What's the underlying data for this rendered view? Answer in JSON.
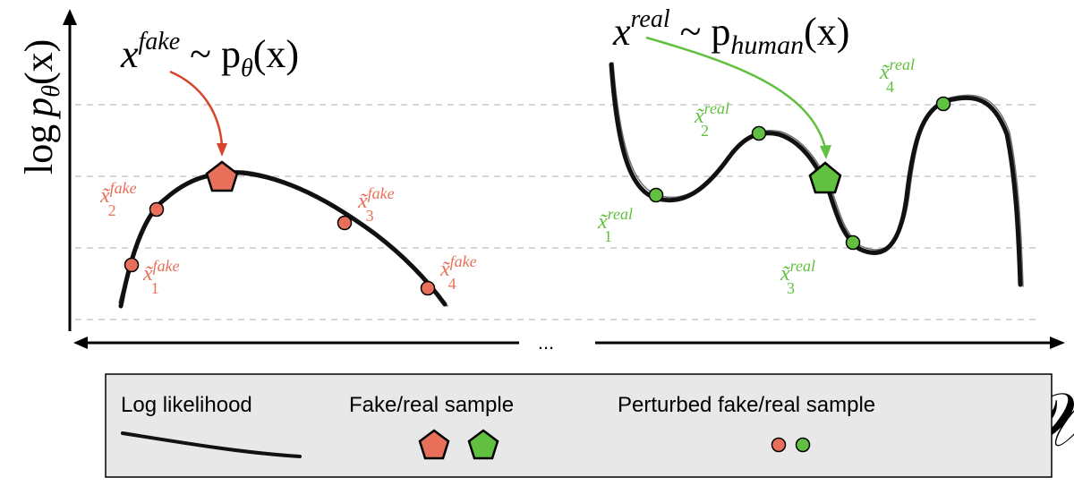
{
  "colors": {
    "fake": "#e8705a",
    "real": "#62c040",
    "fake_arrow": "#d9442c",
    "curve": "#111111",
    "legend_bg": "#e8e8e8"
  },
  "y_axis": {
    "label_log": "log",
    "label_p": "p",
    "label_sub": "θ",
    "label_arg": "(x)"
  },
  "x_axis": {
    "symbol": "𝒳",
    "ellipsis": "..."
  },
  "fake": {
    "title_base": "x",
    "title_sup": "fake",
    "title_rest": " ~ p",
    "title_sub": "θ",
    "title_arg": "(x)",
    "points": [
      {
        "base": "x̃",
        "sup": "fake",
        "sub": "1"
      },
      {
        "base": "x̃",
        "sup": "fake",
        "sub": "2"
      },
      {
        "base": "x̃",
        "sup": "fake",
        "sub": "3"
      },
      {
        "base": "x̃",
        "sup": "fake",
        "sub": "4"
      }
    ]
  },
  "real": {
    "title_base": "x",
    "title_sup": "real",
    "title_rest": " ~ p",
    "title_sub": "human",
    "title_arg": "(x)",
    "points": [
      {
        "base": "x̃",
        "sup": "real",
        "sub": "1"
      },
      {
        "base": "x̃",
        "sup": "real",
        "sub": "2"
      },
      {
        "base": "x̃",
        "sup": "real",
        "sub": "3"
      },
      {
        "base": "x̃",
        "sup": "real",
        "sub": "4"
      }
    ]
  },
  "legend": {
    "log_likelihood": "Log likelihood",
    "sample": "Fake/real sample",
    "perturbed": "Perturbed fake/real sample"
  }
}
